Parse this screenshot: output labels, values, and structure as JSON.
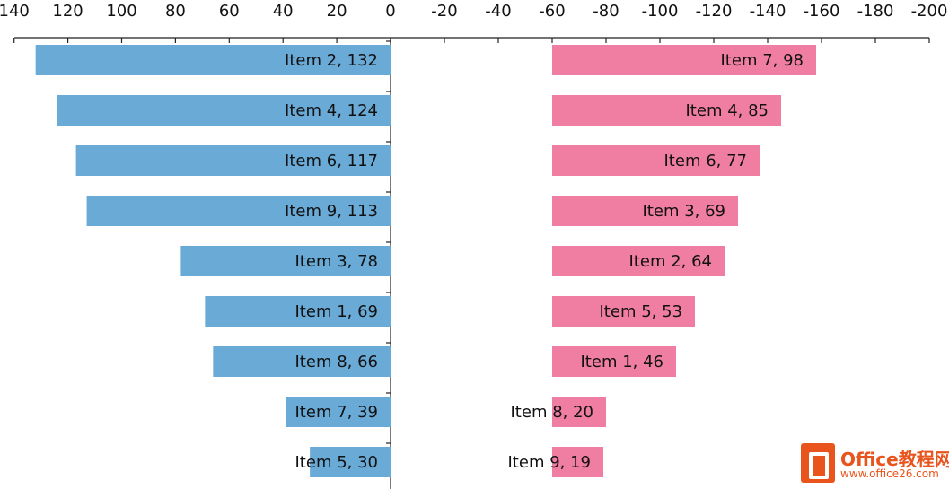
{
  "chart_data": [
    {
      "type": "bar",
      "orientation": "horizontal",
      "axis_reversed": true,
      "xlim": [
        0,
        140
      ],
      "x_ticks": [
        "140",
        "120",
        "100",
        "80",
        "60",
        "40",
        "20",
        "0"
      ],
      "color": "#6aaad6",
      "data_labels": [
        "Item 2, 132",
        "Item 4, 124",
        "Item 6, 117",
        "Item 9, 113",
        "Item 3, 78",
        "Item 1, 69",
        "Item 8, 66",
        "Item 7, 39",
        "Item 5, 30"
      ],
      "categories": [
        "Item 2",
        "Item 4",
        "Item 6",
        "Item 9",
        "Item 3",
        "Item 1",
        "Item 8",
        "Item 7",
        "Item 5"
      ],
      "values": [
        132,
        124,
        117,
        113,
        78,
        69,
        66,
        39,
        30
      ]
    },
    {
      "type": "bar",
      "orientation": "horizontal",
      "axis_reversed": true,
      "xlim": [
        -200,
        0
      ],
      "x_ticks": [
        "0",
        "-20",
        "-40",
        "-60",
        "-80",
        "-100",
        "-120",
        "-140",
        "-160",
        "-180",
        "-200"
      ],
      "color": "#f07ea2",
      "data_labels": [
        "Item 7, 98",
        "Item 4, 85",
        "Item 6, 77",
        "Item 3, 69",
        "Item 2, 64",
        "Item 5, 53",
        "Item 1, 46",
        "Item 8, 20",
        "Item 9, 19"
      ],
      "categories": [
        "Item 7",
        "Item 4",
        "Item 6",
        "Item 3",
        "Item 2",
        "Item 5",
        "Item 1",
        "Item 8",
        "Item 9"
      ],
      "values": [
        98,
        85,
        77,
        69,
        64,
        53,
        46,
        20,
        19
      ],
      "bars_start_at": -60
    }
  ],
  "watermark": {
    "brand": "Office教程网",
    "url": "www.office26.com"
  }
}
